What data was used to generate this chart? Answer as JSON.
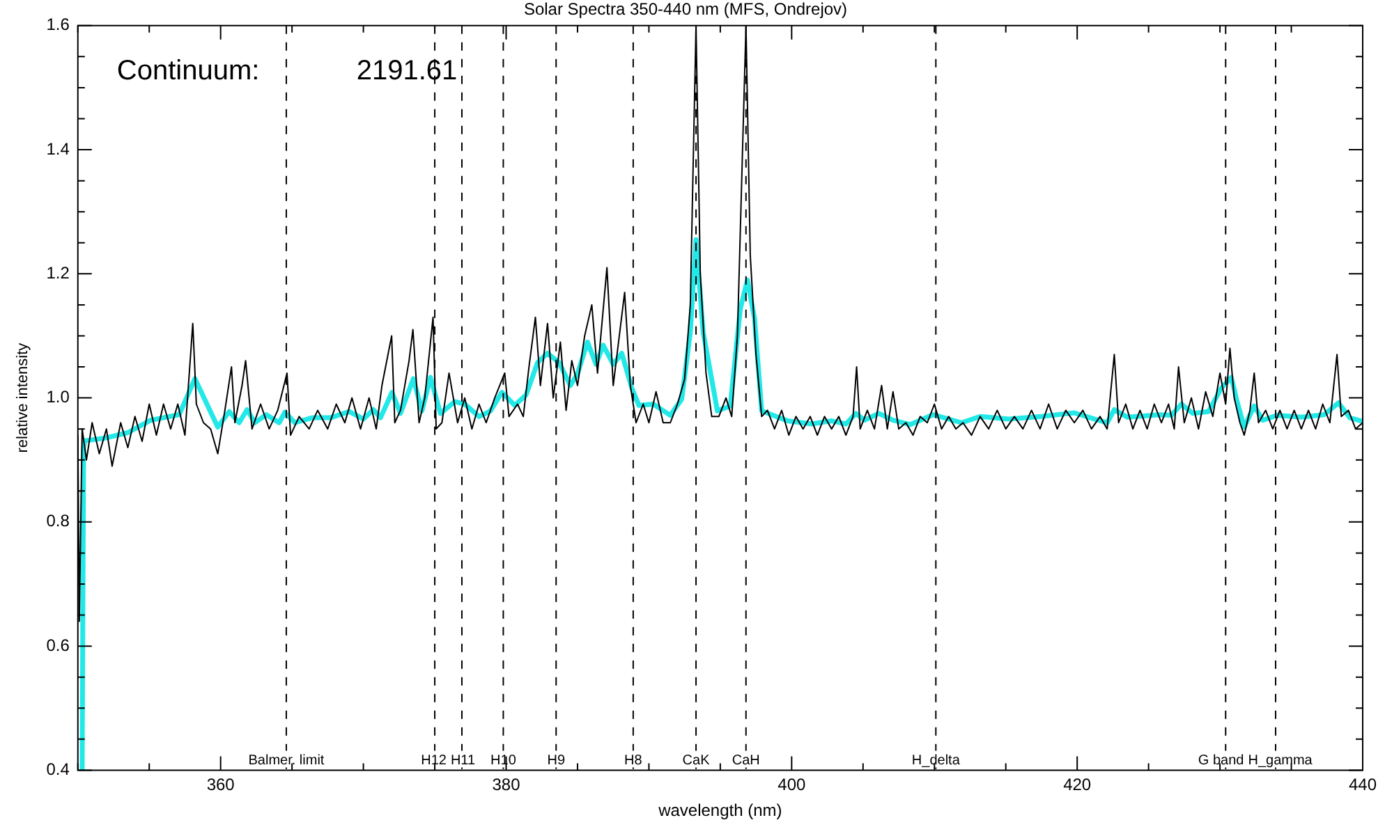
{
  "chart_data": {
    "type": "line",
    "title": "Solar Spectra 350-440 nm (MFS, Ondrejov)",
    "xlabel": "wavelength (nm)",
    "ylabel": "relative intensity",
    "annotations": [
      "Continuum:",
      "2191.61"
    ],
    "xlim": [
      350,
      440
    ],
    "xticks": [
      {
        "value": 350,
        "label": null
      },
      {
        "value": 355,
        "label": null
      },
      360,
      {
        "value": 365,
        "label": null
      },
      {
        "value": 370,
        "label": null
      },
      {
        "value": 375,
        "label": null
      },
      380,
      {
        "value": 385,
        "label": null
      },
      {
        "value": 390,
        "label": null
      },
      {
        "value": 395,
        "label": null
      },
      400,
      {
        "value": 405,
        "label": null
      },
      {
        "value": 410,
        "label": null
      },
      {
        "value": 415,
        "label": null
      },
      420,
      {
        "value": 425,
        "label": null
      },
      {
        "value": 430,
        "label": null
      },
      {
        "value": 435,
        "label": null
      },
      440
    ],
    "ylim": [
      0.4,
      1.6
    ],
    "yticks": [
      {
        "value": 0.4,
        "label": "0.4"
      },
      {
        "value": 0.45,
        "label": null
      },
      {
        "value": 0.5,
        "label": null
      },
      {
        "value": 0.55,
        "label": null
      },
      {
        "value": 0.6,
        "label": "0.6"
      },
      {
        "value": 0.65,
        "label": null
      },
      {
        "value": 0.7,
        "label": null
      },
      {
        "value": 0.75,
        "label": null
      },
      {
        "value": 0.8,
        "label": "0.8"
      },
      {
        "value": 0.85,
        "label": null
      },
      {
        "value": 0.9,
        "label": null
      },
      {
        "value": 0.95,
        "label": null
      },
      {
        "value": 1.0,
        "label": "1.0"
      },
      {
        "value": 1.05,
        "label": null
      },
      {
        "value": 1.1,
        "label": null
      },
      {
        "value": 1.15,
        "label": null
      },
      {
        "value": 1.2,
        "label": "1.2"
      },
      {
        "value": 1.25,
        "label": null
      },
      {
        "value": 1.3,
        "label": null
      },
      {
        "value": 1.35,
        "label": null
      },
      {
        "value": 1.4,
        "label": "1.4"
      },
      {
        "value": 1.45,
        "label": null
      },
      {
        "value": 1.5,
        "label": null
      },
      {
        "value": 1.55,
        "label": null
      },
      {
        "value": 1.6,
        "label": "1.6"
      }
    ],
    "grid": false,
    "legend": false,
    "line_style": "solid",
    "ref_lines": [
      {
        "axis": "x",
        "value": 364.6,
        "label": "Balmer. limit",
        "line_style": "dashed",
        "color": "#000000"
      },
      {
        "axis": "x",
        "value": 375.0,
        "label": "H12",
        "line_style": "dashed",
        "color": "#000000"
      },
      {
        "axis": "x",
        "value": 376.9,
        "label": "H11",
        "line_style": "dashed",
        "color": "#000000"
      },
      {
        "axis": "x",
        "value": 379.8,
        "label": "H10",
        "line_style": "dashed",
        "color": "#000000"
      },
      {
        "axis": "x",
        "value": 383.5,
        "label": "H9",
        "line_style": "dashed",
        "color": "#000000"
      },
      {
        "axis": "x",
        "value": 388.9,
        "label": "H8",
        "line_style": "dashed",
        "color": "#000000"
      },
      {
        "axis": "x",
        "value": 393.3,
        "label": "CaK",
        "line_style": "dashed",
        "color": "#000000"
      },
      {
        "axis": "x",
        "value": 396.8,
        "label": "CaH",
        "line_style": "dashed",
        "color": "#000000"
      },
      {
        "axis": "x",
        "value": 410.1,
        "label": "H_delta",
        "line_style": "dashed",
        "color": "#000000"
      },
      {
        "axis": "x",
        "value": 430.4,
        "label": "G band",
        "line_style": "dashed",
        "color": "#000000"
      },
      {
        "axis": "x",
        "value": 433.9,
        "label": "H_gamma",
        "line_style": "dashed",
        "color": "#000000"
      }
    ],
    "series": [
      {
        "color": "#000000",
        "x": [
          350.0,
          350.1,
          350.3,
          350.6,
          351.0,
          351.5,
          352.0,
          352.4,
          353.0,
          353.5,
          354.0,
          354.5,
          355.0,
          355.5,
          356.0,
          356.5,
          357.0,
          357.5,
          358.05,
          358.3,
          358.8,
          359.3,
          359.8,
          360.3,
          360.76,
          361.0,
          361.5,
          361.75,
          362.2,
          362.8,
          363.4,
          364.0,
          364.65,
          364.9,
          365.5,
          366.2,
          366.8,
          367.5,
          368.1,
          368.7,
          369.2,
          369.8,
          370.4,
          370.9,
          371.3,
          371.98,
          372.2,
          372.6,
          373.2,
          373.47,
          373.9,
          374.3,
          374.88,
          375.1,
          375.5,
          376.0,
          376.6,
          377.1,
          377.6,
          378.1,
          378.6,
          379.2,
          379.9,
          380.2,
          380.8,
          381.2,
          381.6,
          382.05,
          382.4,
          382.9,
          383.3,
          383.8,
          384.2,
          384.6,
          385.0,
          385.5,
          386.0,
          386.4,
          387.06,
          387.5,
          388.3,
          388.7,
          389.1,
          389.6,
          390.0,
          390.5,
          391.0,
          391.5,
          392.0,
          392.5,
          392.9,
          393.3,
          393.6,
          394.0,
          394.4,
          394.9,
          395.4,
          395.8,
          396.2,
          396.8,
          397.1,
          397.5,
          397.9,
          398.3,
          398.8,
          399.3,
          399.8,
          400.3,
          400.8,
          401.3,
          401.8,
          402.3,
          402.8,
          403.3,
          403.8,
          404.3,
          404.55,
          404.8,
          405.3,
          405.8,
          406.3,
          406.7,
          407.1,
          407.5,
          408.0,
          408.5,
          409.0,
          409.5,
          410.0,
          410.5,
          411.0,
          411.5,
          412.0,
          412.6,
          413.2,
          413.8,
          414.4,
          415.0,
          415.6,
          416.2,
          416.8,
          417.4,
          418.0,
          418.6,
          419.2,
          419.8,
          420.4,
          421.0,
          421.6,
          422.1,
          422.6,
          422.9,
          423.4,
          423.9,
          424.4,
          424.9,
          425.4,
          425.9,
          426.4,
          426.8,
          427.1,
          427.5,
          428.0,
          428.5,
          429.0,
          429.5,
          430.0,
          430.4,
          430.7,
          431.0,
          431.4,
          431.7,
          432.1,
          432.4,
          432.7,
          433.2,
          433.7,
          434.2,
          434.7,
          435.2,
          435.7,
          436.2,
          436.7,
          437.2,
          437.7,
          438.2,
          438.5,
          439.0,
          439.5,
          440.0
        ],
        "values": [
          0.94,
          0.64,
          0.95,
          0.9,
          0.96,
          0.91,
          0.95,
          0.89,
          0.96,
          0.92,
          0.97,
          0.93,
          0.99,
          0.94,
          0.99,
          0.95,
          0.99,
          0.94,
          1.12,
          0.99,
          0.96,
          0.95,
          0.91,
          0.98,
          1.05,
          0.96,
          1.02,
          1.06,
          0.95,
          0.99,
          0.95,
          0.98,
          1.04,
          0.94,
          0.97,
          0.95,
          0.98,
          0.95,
          0.99,
          0.96,
          1.0,
          0.95,
          1.0,
          0.95,
          1.02,
          1.1,
          0.96,
          0.98,
          1.06,
          1.11,
          0.96,
          1.0,
          1.13,
          0.95,
          0.96,
          1.04,
          0.96,
          1.0,
          0.95,
          0.99,
          0.96,
          1.0,
          1.04,
          0.97,
          0.99,
          0.97,
          1.05,
          1.13,
          1.02,
          1.12,
          1.0,
          1.09,
          0.98,
          1.06,
          1.02,
          1.1,
          1.15,
          1.04,
          1.21,
          1.02,
          1.17,
          1.02,
          0.96,
          0.99,
          0.96,
          1.01,
          0.96,
          0.96,
          0.99,
          1.03,
          1.15,
          1.6,
          1.2,
          1.04,
          0.97,
          0.97,
          1.0,
          0.97,
          1.1,
          1.6,
          1.23,
          1.07,
          0.97,
          0.98,
          0.95,
          0.98,
          0.94,
          0.97,
          0.95,
          0.97,
          0.94,
          0.97,
          0.95,
          0.97,
          0.94,
          0.97,
          1.05,
          0.95,
          0.98,
          0.95,
          1.02,
          0.95,
          1.01,
          0.95,
          0.96,
          0.94,
          0.97,
          0.96,
          0.99,
          0.95,
          0.97,
          0.95,
          0.96,
          0.94,
          0.97,
          0.95,
          0.98,
          0.95,
          0.97,
          0.95,
          0.98,
          0.95,
          0.99,
          0.95,
          0.98,
          0.96,
          0.98,
          0.95,
          0.97,
          0.95,
          1.07,
          0.96,
          0.99,
          0.95,
          0.98,
          0.95,
          0.99,
          0.96,
          0.99,
          0.95,
          1.05,
          0.96,
          1.0,
          0.95,
          1.01,
          0.97,
          1.04,
          0.99,
          1.08,
          1.0,
          0.96,
          0.94,
          0.98,
          1.04,
          0.96,
          0.98,
          0.95,
          0.98,
          0.95,
          0.98,
          0.95,
          0.98,
          0.95,
          0.99,
          0.96,
          1.07,
          0.97,
          0.98,
          0.95,
          0.96
        ]
      },
      {
        "color": "#22e8e8",
        "x": [
          350.3,
          350.4,
          350.5,
          351.85,
          353.5,
          355.1,
          357.1,
          358.2,
          359.8,
          360.6,
          361.3,
          361.85,
          362.4,
          363.2,
          364.1,
          364.5,
          365.2,
          366.4,
          367.7,
          369.0,
          370.0,
          370.7,
          371.2,
          372.0,
          372.6,
          373.5,
          374.1,
          374.7,
          375.4,
          376.4,
          377.1,
          378.1,
          378.9,
          379.7,
          380.6,
          381.4,
          382.2,
          382.9,
          383.7,
          384.5,
          385.0,
          385.7,
          386.3,
          386.8,
          387.5,
          388.1,
          388.8,
          389.3,
          390.3,
          391.5,
          392.3,
          392.9,
          393.3,
          393.8,
          394.8,
          395.7,
          396.4,
          396.9,
          397.4,
          397.9,
          399.7,
          401.4,
          402.8,
          403.8,
          404.5,
          405.1,
          406.1,
          407.1,
          408.3,
          409.9,
          411.9,
          413.2,
          415.2,
          417.5,
          419.8,
          421.2,
          422.1,
          422.6,
          423.5,
          425.8,
          426.6,
          427.3,
          428.1,
          429.2,
          430.1,
          430.8,
          431.2,
          431.7,
          432.4,
          433.0,
          434.0,
          435.7,
          437.3,
          438.3,
          439.1,
          440.0
        ],
        "values": [
          0.4,
          0.92,
          0.931,
          0.935,
          0.944,
          0.964,
          0.973,
          1.031,
          0.953,
          0.978,
          0.96,
          0.981,
          0.96,
          0.973,
          0.96,
          0.977,
          0.96,
          0.968,
          0.968,
          0.978,
          0.966,
          0.981,
          0.968,
          1.009,
          0.975,
          1.031,
          0.979,
          1.033,
          0.975,
          0.994,
          0.99,
          0.97,
          0.979,
          1.009,
          0.988,
          1.005,
          1.057,
          1.072,
          1.057,
          1.02,
          1.039,
          1.09,
          1.054,
          1.085,
          1.054,
          1.072,
          1.016,
          0.988,
          0.99,
          0.972,
          0.998,
          1.106,
          1.255,
          1.106,
          0.979,
          0.987,
          1.143,
          1.19,
          1.128,
          0.979,
          0.963,
          0.958,
          0.963,
          0.958,
          0.975,
          0.964,
          0.975,
          0.964,
          0.957,
          0.973,
          0.96,
          0.97,
          0.966,
          0.97,
          0.976,
          0.966,
          0.96,
          0.981,
          0.969,
          0.973,
          0.972,
          0.99,
          0.975,
          0.978,
          1.016,
          1.033,
          0.994,
          0.953,
          0.987,
          0.964,
          0.972,
          0.969,
          0.973,
          0.992,
          0.968,
          0.962
        ]
      }
    ]
  }
}
